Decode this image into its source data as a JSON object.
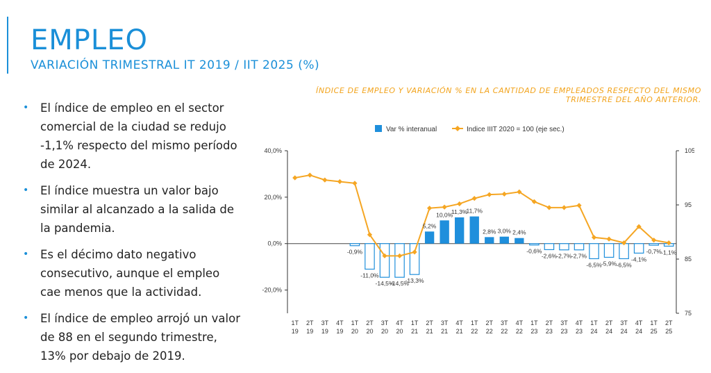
{
  "header": {
    "title": "EMPLEO",
    "subtitle": "VARIACIÓN TRIMESTRAL IT 2019 / IIT 2025 (%)"
  },
  "bullets": [
    "El índice de empleo en el sector comercial de la ciudad se redujo -1,1% respecto del mismo período de 2024.",
    "El índice muestra un valor bajo similar al alcanzado a la salida de la pandemia.",
    "Es el décimo dato negativo consecutivo, aunque el empleo cae menos que la actividad.",
    "El índice de empleo arrojó un valor de 88 en el segundo trimestre, 13% por debajo de 2019."
  ],
  "colors": {
    "accent": "#1a8fd8",
    "bar": "#1f8fdc",
    "line": "#f5a623",
    "caption": "#f2a31b"
  },
  "chart_data": {
    "type": "bar",
    "title": "ÍNDICE DE EMPLEO Y VARIACIÓN % EN LA CANTIDAD DE EMPLEADOS RESPECTO DEL MISMO TRIMESTRE DEL AÑO ANTERIOR.",
    "categories": [
      [
        "1T",
        "19"
      ],
      [
        "2T",
        "19"
      ],
      [
        "3T",
        "19"
      ],
      [
        "4T",
        "19"
      ],
      [
        "1T",
        "20"
      ],
      [
        "2T",
        "20"
      ],
      [
        "3T",
        "20"
      ],
      [
        "4T",
        "20"
      ],
      [
        "1T",
        "21"
      ],
      [
        "2T",
        "21"
      ],
      [
        "3T",
        "21"
      ],
      [
        "4T",
        "21"
      ],
      [
        "1T",
        "22"
      ],
      [
        "2T",
        "22"
      ],
      [
        "3T",
        "22"
      ],
      [
        "4T",
        "22"
      ],
      [
        "1T",
        "23"
      ],
      [
        "2T",
        "23"
      ],
      [
        "3T",
        "23"
      ],
      [
        "4T",
        "23"
      ],
      [
        "1T",
        "24"
      ],
      [
        "2T",
        "24"
      ],
      [
        "3T",
        "24"
      ],
      [
        "4T",
        "24"
      ],
      [
        "1T",
        "25"
      ],
      [
        "2T",
        "25"
      ]
    ],
    "series": [
      {
        "name": "Var % interanual",
        "type": "bar",
        "axis": "left",
        "values": [
          null,
          null,
          null,
          null,
          -0.9,
          -11.0,
          -14.5,
          -14.5,
          -13.3,
          5.2,
          10.0,
          11.3,
          11.7,
          2.8,
          3.0,
          2.4,
          -0.6,
          -2.6,
          -2.7,
          -2.7,
          -6.5,
          -5.9,
          -6.5,
          -4.1,
          -0.7,
          -1.1
        ],
        "labels": [
          "",
          "",
          "",
          "",
          "-0,9%",
          "-11,0%",
          "-14,5%",
          "-14,5%",
          "-13,3%",
          "5,2%",
          "10,0%",
          "11,3%",
          "11,7%",
          "2,8%",
          "3,0%",
          "2,4%",
          "-0,6%",
          "-2,6%",
          "-2,7%",
          "-2,7%",
          "-6,5%",
          "-5,9%",
          "-6,5%",
          "-4,1%",
          "-0,7%",
          "-1,1%"
        ]
      },
      {
        "name": "Indice IIIT 2020 = 100 (eje sec.)",
        "type": "line",
        "axis": "right",
        "values": [
          100.0,
          100.5,
          99.6,
          99.3,
          99.0,
          89.5,
          85.6,
          85.6,
          86.3,
          94.4,
          94.6,
          95.2,
          96.2,
          96.9,
          97.0,
          97.4,
          95.6,
          94.5,
          94.5,
          94.9,
          89.0,
          88.7,
          88.0,
          91.0,
          88.5,
          88.0
        ]
      }
    ],
    "y_left": {
      "range": [
        -30,
        40
      ],
      "ticks": [
        -20,
        0,
        20,
        40
      ],
      "tick_labels": [
        "-20,0%",
        "0,0%",
        "20,0%",
        "40,0%"
      ]
    },
    "y_right": {
      "range": [
        75,
        105
      ],
      "ticks": [
        75,
        85,
        95,
        105
      ],
      "tick_labels": [
        "75",
        "85",
        "95",
        "105"
      ]
    },
    "legend": {
      "position": "top-center",
      "items": [
        "Var % interanual",
        "Indice IIIT 2020 = 100 (eje sec.)"
      ]
    },
    "grid": false
  }
}
